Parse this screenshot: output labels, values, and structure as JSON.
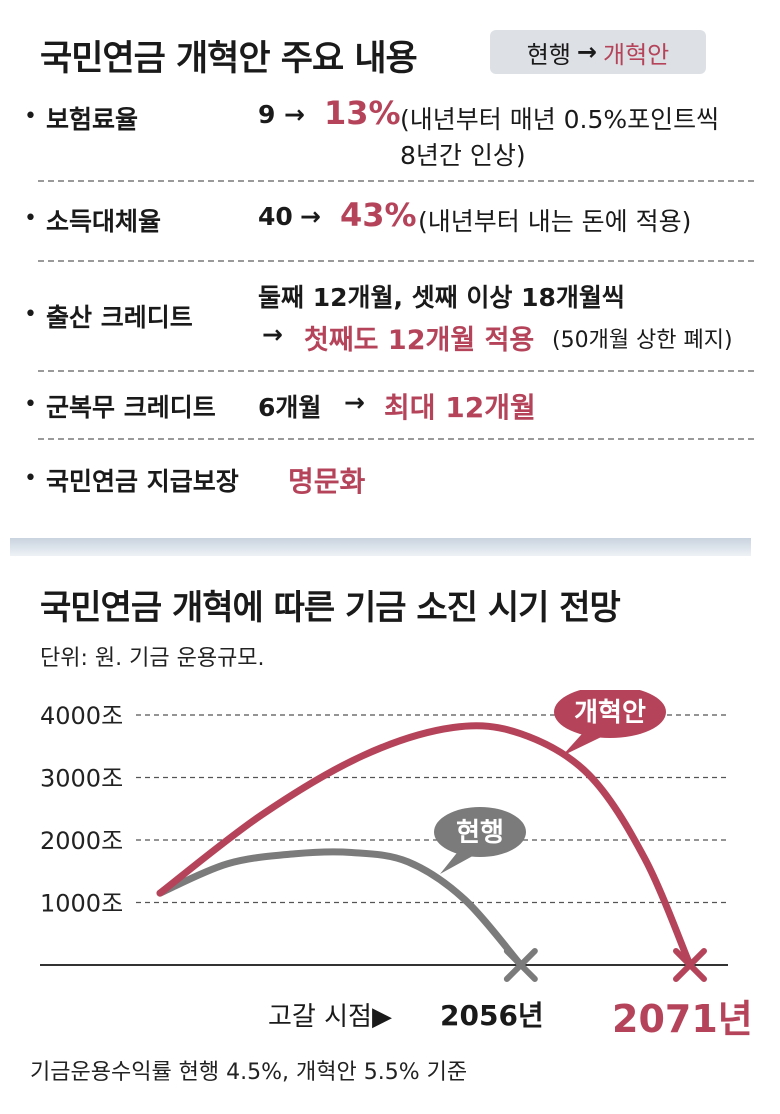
{
  "header": {
    "title": "국민연금 개혁안 주요 내용",
    "legend_current": "현행",
    "legend_arrow": "→",
    "legend_reform": "개혁안"
  },
  "reform_items": [
    {
      "label": "보험료율",
      "from": "9",
      "arrow": "→",
      "to": "13%",
      "note1": "(내년부터 매년 0.5%포인트씩",
      "note2": "8년간 인상)"
    },
    {
      "label": "소득대체율",
      "from": "40",
      "arrow": "→",
      "to": "43%",
      "note1": "(내년부터 내는 돈에 적용)"
    },
    {
      "label": "출산 크레디트",
      "line1": "둘째 12개월, 셋째 이상 18개월씩",
      "arrow": "→",
      "to": "첫째도 12개월 적용",
      "note1": "(50개월 상한 폐지)"
    },
    {
      "label": "군복무 크레디트",
      "from": "6개월",
      "arrow": "→",
      "to": "최대 12개월"
    },
    {
      "label": "국민연금 지급보장",
      "to": "명문화"
    }
  ],
  "chart_section": {
    "title": "국민연금 개혁에 따른 기금 소진 시기 전망",
    "unit": "단위: 원. 기금 운용규모.",
    "depletion_label": "고갈 시점▶",
    "depletion_current": "2056년",
    "depletion_reform": "2071년",
    "footnote": "기금운용수익률 현행 4.5%, 개혁안 5.5% 기준"
  },
  "chart_data": {
    "type": "line",
    "title": "국민연금 개혁에 따른 기금 소진 시기 전망",
    "ylabel": "",
    "yticks": [
      "1000조",
      "2000조",
      "3000조",
      "4000조"
    ],
    "ytick_values": [
      1000,
      2000,
      3000,
      4000
    ],
    "ylim": [
      0,
      4000
    ],
    "grid": true,
    "series": [
      {
        "name": "현행",
        "color": "#7b7b7b",
        "x": [
          2024,
          2030,
          2036,
          2041,
          2046,
          2051,
          2056
        ],
        "y": [
          1150,
          1620,
          1780,
          1800,
          1650,
          1050,
          0
        ],
        "end_label": "2056년"
      },
      {
        "name": "개혁안",
        "color": "#b5445a",
        "x": [
          2024,
          2033,
          2042,
          2050,
          2056,
          2062,
          2067,
          2071
        ],
        "y": [
          1150,
          2400,
          3350,
          3800,
          3700,
          3050,
          1700,
          0
        ],
        "end_label": "2071년"
      }
    ]
  }
}
